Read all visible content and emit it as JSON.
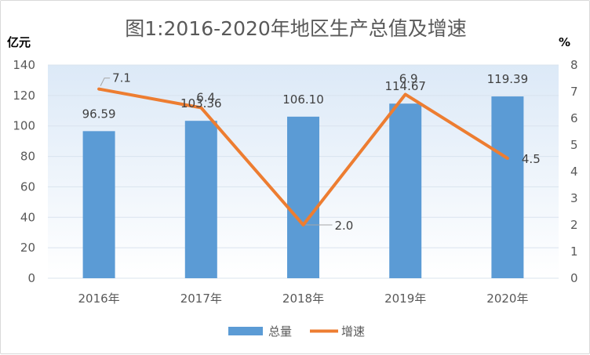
{
  "chart_data": {
    "type": "bar",
    "title": "图1:2016-2020年地区生产总值及增速",
    "categories": [
      "2016年",
      "2017年",
      "2018年",
      "2019年",
      "2020年"
    ],
    "y_left": {
      "unit_label": "亿元",
      "range": [
        0,
        140
      ],
      "ticks": [
        "0",
        "20",
        "40",
        "60",
        "80",
        "100",
        "120",
        "140"
      ]
    },
    "y_right": {
      "unit_label": "%",
      "range": [
        0,
        8
      ],
      "ticks": [
        "0",
        "1",
        "2",
        "3",
        "4",
        "5",
        "6",
        "7",
        "8"
      ]
    },
    "series": [
      {
        "name": "总量",
        "type": "bar",
        "axis": "left",
        "color": "#5b9bd5",
        "values": [
          96.59,
          103.36,
          106.1,
          114.67,
          119.39
        ],
        "labels": [
          "96.59",
          "103.36",
          "106.10",
          "114.67",
          "119.39"
        ]
      },
      {
        "name": "增速",
        "type": "line",
        "axis": "right",
        "color": "#ed7d31",
        "values": [
          7.1,
          6.4,
          2.0,
          6.9,
          4.5
        ],
        "labels": [
          "7.1",
          "6.4",
          "2.0",
          "6.9",
          "4.5"
        ]
      }
    ],
    "legend_position": "bottom",
    "grid": true,
    "background_gradient": [
      "#dce9f7",
      "#ffffff"
    ]
  }
}
